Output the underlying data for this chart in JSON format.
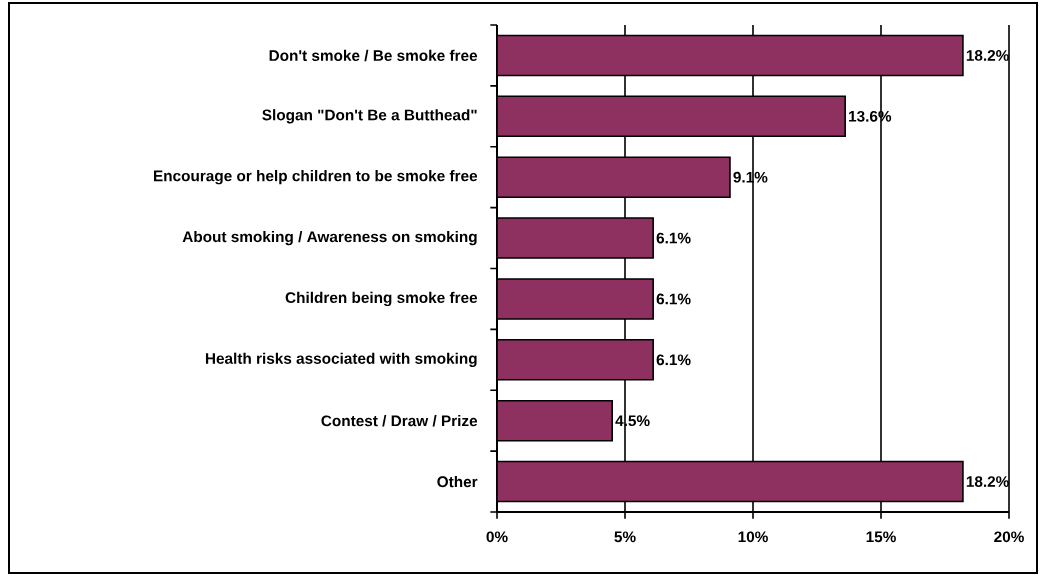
{
  "chart_data": {
    "type": "bar",
    "orientation": "horizontal",
    "categories": [
      "Don't smoke / Be smoke free",
      "Slogan \"Don't Be a Butthead\"",
      "Encourage or help children to be smoke free",
      "About smoking / Awareness on smoking",
      "Children being smoke free",
      "Health risks associated with smoking",
      "Contest / Draw / Prize",
      "Other"
    ],
    "values": [
      18.2,
      13.6,
      9.1,
      6.1,
      6.1,
      6.1,
      4.5,
      18.2
    ],
    "value_labels": [
      "18.2%",
      "13.6%",
      "9.1%",
      "6.1%",
      "6.1%",
      "6.1%",
      "4.5%",
      "18.2%"
    ],
    "color": "#8e3060",
    "xlim": [
      0,
      20
    ],
    "xticks": [
      {
        "value": 0,
        "label": "0%"
      },
      {
        "value": 5,
        "label": "5%"
      },
      {
        "value": 10,
        "label": "10%"
      },
      {
        "value": 15,
        "label": "15%"
      },
      {
        "value": 20,
        "label": "20%"
      }
    ],
    "grid": "x"
  }
}
